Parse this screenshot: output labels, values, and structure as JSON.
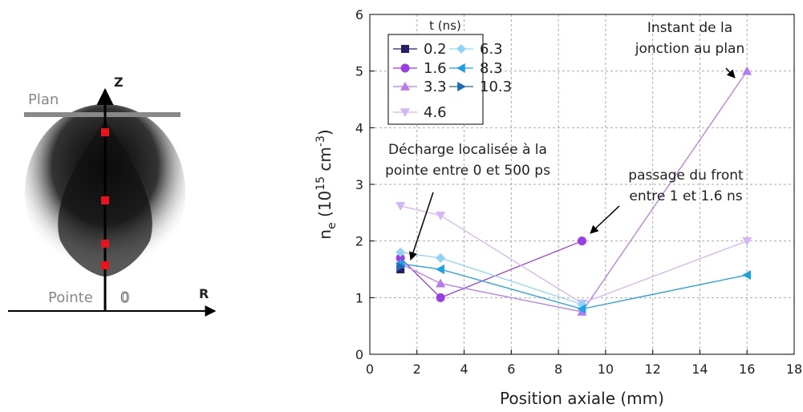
{
  "diagram": {
    "z_label": "Z",
    "r_label": "R",
    "plan_label": "Plan",
    "pointe_label": "Pointe",
    "origin_label": "0"
  },
  "chart_data": {
    "type": "line",
    "x_label": "Position axiale (mm)",
    "y_label": {
      "symbol": "n",
      "subscript": "e",
      "unit_open": " (10",
      "exponent": "15",
      "unit_mid": " cm",
      "unit_exponent": "-3",
      "unit_close": ")"
    },
    "legend_title": "t (ns)",
    "legend_position": "upper left",
    "grid": true,
    "xlim": [
      0,
      18
    ],
    "xticks": [
      0,
      2,
      4,
      6,
      8,
      10,
      12,
      14,
      16,
      18
    ],
    "ylim": [
      0,
      6
    ],
    "yticks": [
      0,
      1,
      2,
      3,
      4,
      5,
      6
    ],
    "series": [
      {
        "name": "0.2",
        "color": "#2b1a66",
        "marker": "square",
        "x": [
          1.3
        ],
        "values": [
          1.5
        ]
      },
      {
        "name": "1.6",
        "color": "#9a3de6",
        "marker": "circle",
        "x": [
          1.3,
          3,
          9
        ],
        "values": [
          1.7,
          1.0,
          2.0
        ]
      },
      {
        "name": "3.3",
        "color": "#b57af0",
        "marker": "triangle-up",
        "x": [
          1.3,
          3,
          9,
          16
        ],
        "values": [
          1.6,
          1.25,
          0.75,
          5.0
        ]
      },
      {
        "name": "4.6",
        "color": "#d4b5f7",
        "marker": "triangle-down",
        "x": [
          1.3,
          3,
          9,
          16
        ],
        "values": [
          2.62,
          2.45,
          0.9,
          2.0
        ]
      },
      {
        "name": "6.3",
        "color": "#8fd3f7",
        "marker": "diamond",
        "x": [
          1.3,
          3,
          9
        ],
        "values": [
          1.8,
          1.7,
          0.88
        ]
      },
      {
        "name": "8.3",
        "color": "#1fa0e6",
        "marker": "triangle-left",
        "x": [
          1.3,
          3,
          9,
          16
        ],
        "values": [
          1.6,
          1.5,
          0.8,
          1.4
        ]
      },
      {
        "name": "10.3",
        "color": "#1a6cb8",
        "marker": "triangle-right",
        "x": [
          1.3
        ],
        "values": [
          1.55
        ]
      }
    ],
    "annotations": [
      {
        "lines": [
          "Instant de la",
          "jonction au plan"
        ]
      },
      {
        "lines": [
          "Décharge localisée à la",
          "pointe entre 0 et 500 ps"
        ]
      },
      {
        "lines": [
          "passage du front",
          "entre 1 et 1.6 ns"
        ]
      }
    ]
  }
}
